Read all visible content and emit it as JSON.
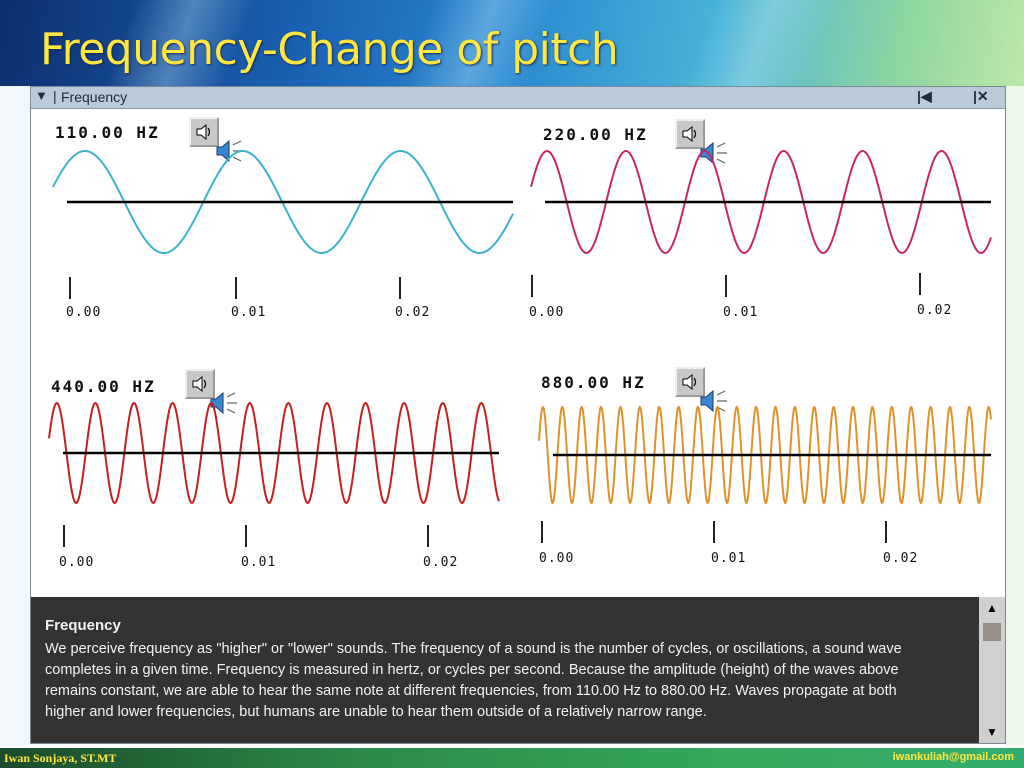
{
  "slide": {
    "title": "Frequency-Change of pitch",
    "author": "Iwan Sonjaya, ST.MT",
    "email": "iwankuliah@gmail.com"
  },
  "window": {
    "title": "Frequency",
    "menu_icon": "dropdown-triangle-icon",
    "buttons": [
      "collapse-icon",
      "close-icon"
    ]
  },
  "panels": [
    {
      "label": "110.00 HZ",
      "frequency_hz": 110,
      "color": "#3bb3c8",
      "ticks": [
        "0.00",
        "0.01",
        "0.02"
      ]
    },
    {
      "label": "220.00 HZ",
      "frequency_hz": 220,
      "color": "#c8256a",
      "ticks": [
        "0.00",
        "0.01",
        "0.02"
      ]
    },
    {
      "label": "440.00 HZ",
      "frequency_hz": 440,
      "color": "#c51f1f",
      "ticks": [
        "0.00",
        "0.01",
        "0.02"
      ]
    },
    {
      "label": "880.00 HZ",
      "frequency_hz": 880,
      "color": "#e0922a",
      "ticks": [
        "0.00",
        "0.01",
        "0.02"
      ]
    }
  ],
  "description": {
    "title": "Frequency",
    "body": "We perceive frequency as \"higher\" or \"lower\" sounds. The frequency of a sound is the number of cycles, or oscillations, a sound wave completes in a given time. Frequency is measured in hertz, or cycles per second. Because the amplitude (height) of the waves above remains constant, we are able to hear the same note at different frequencies, from 110.00 Hz to 880.00 Hz. Waves propagate at both higher and lower frequencies, but humans are unable to hear them outside of a relatively narrow range."
  }
}
